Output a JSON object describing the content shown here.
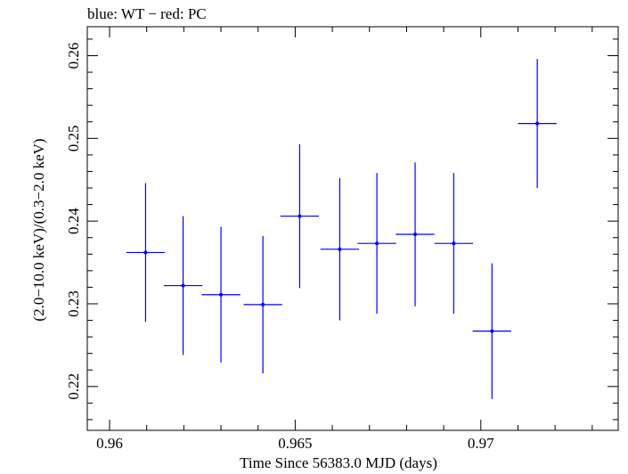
{
  "chart_data": {
    "type": "scatter",
    "title": "blue: WT − red: PC",
    "xlabel": "Time Since 56383.0 MJD (days)",
    "ylabel": "(2.0−10.0 keV)/(0.3−2.0 keV)",
    "xlim": [
      0.9594,
      0.9737
    ],
    "ylim": [
      0.2147,
      0.2635
    ],
    "x_ticks": [
      0.96,
      0.965,
      0.97
    ],
    "x_tick_labels": [
      "0.96",
      "0.965",
      "0.97"
    ],
    "y_ticks": [
      0.22,
      0.23,
      0.24,
      0.25,
      0.26
    ],
    "y_tick_labels": [
      "0.22",
      "0.23",
      "0.24",
      "0.25",
      "0.26"
    ],
    "grid": false,
    "series": [
      {
        "color": "#0000ff",
        "points": [
          {
            "x": 0.96097,
            "y": 0.2362,
            "xerr": 0.00052,
            "yerr": 0.0084
          },
          {
            "x": 0.96198,
            "y": 0.2322,
            "xerr": 0.00052,
            "yerr": 0.0084
          },
          {
            "x": 0.963,
            "y": 0.2311,
            "xerr": 0.00052,
            "yerr": 0.0082
          },
          {
            "x": 0.96413,
            "y": 0.2299,
            "xerr": 0.00052,
            "yerr": 0.0083
          },
          {
            "x": 0.96512,
            "y": 0.2406,
            "xerr": 0.00052,
            "yerr": 0.0087
          },
          {
            "x": 0.9662,
            "y": 0.2366,
            "xerr": 0.00052,
            "yerr": 0.0086
          },
          {
            "x": 0.9672,
            "y": 0.2373,
            "xerr": 0.00052,
            "yerr": 0.0085
          },
          {
            "x": 0.96823,
            "y": 0.2384,
            "xerr": 0.00052,
            "yerr": 0.0087
          },
          {
            "x": 0.96927,
            "y": 0.2373,
            "xerr": 0.00052,
            "yerr": 0.0085
          },
          {
            "x": 0.9703,
            "y": 0.2267,
            "xerr": 0.00052,
            "yerr": 0.0082
          },
          {
            "x": 0.97152,
            "y": 0.2518,
            "xerr": 0.00052,
            "yerr": 0.0078
          }
        ]
      }
    ]
  }
}
